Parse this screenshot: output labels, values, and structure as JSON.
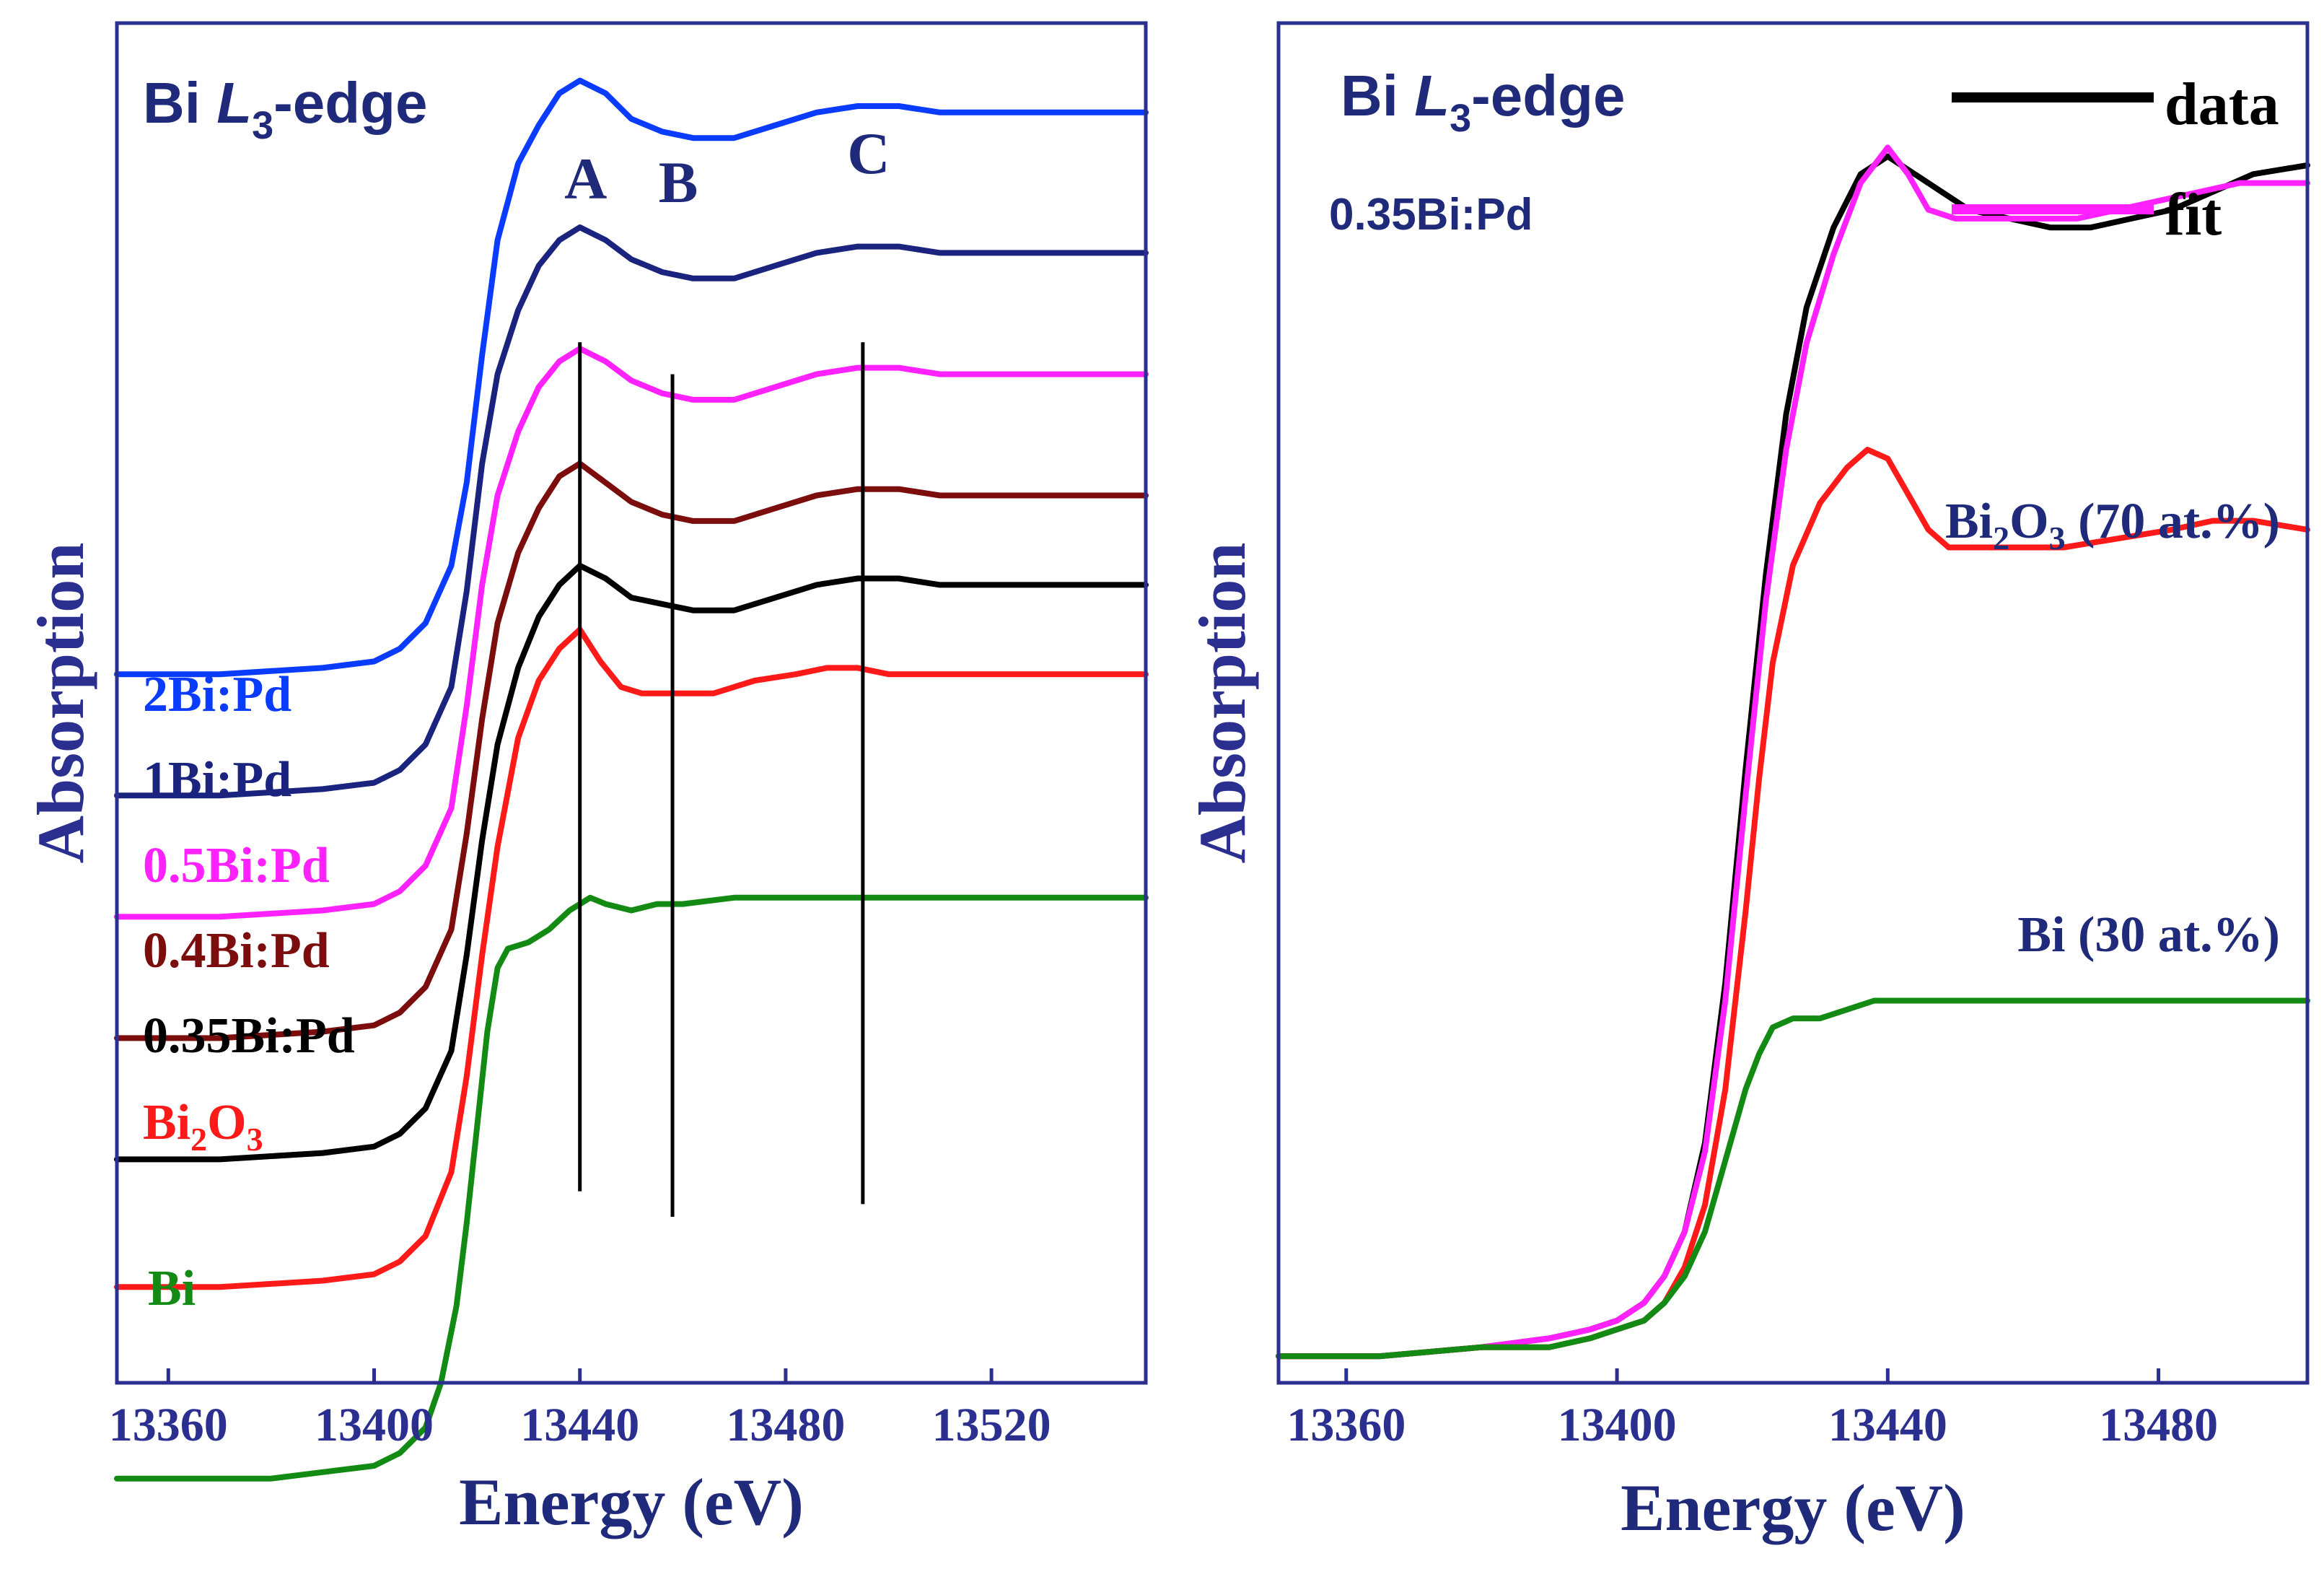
{
  "chart_data": [
    {
      "type": "line",
      "title_parts": {
        "pre": "Bi ",
        "italic": "L",
        "sub": "3",
        "post": "-edge"
      },
      "xlabel": "Energy (eV)",
      "ylabel": "Absorption",
      "xlim": [
        13350,
        13550
      ],
      "ylim": [
        -0.15,
        1.98
      ],
      "xticks": [
        "13360",
        "13400",
        "13440",
        "13480",
        "13520"
      ],
      "xtick_values": [
        13360,
        13400,
        13440,
        13480,
        13520
      ],
      "colors": {
        "axis": "#2b2f8f",
        "title": "#1f2a7a",
        "marker": "#000000"
      },
      "markers": [
        {
          "label": "A",
          "x": 13440,
          "y_top": 1.48,
          "y_bottom": 0.15
        },
        {
          "label": "B",
          "x": 13458,
          "y_top": 1.43,
          "y_bottom": 0.11
        },
        {
          "label": "C",
          "x": 13495,
          "y_top": 1.48,
          "y_bottom": 0.13
        }
      ],
      "series": [
        {
          "name": "2Bi:Pd",
          "color": "#0a3cff",
          "offset": 0.96,
          "x": [
            13350,
            13370,
            13390,
            13400,
            13405,
            13410,
            13415,
            13418,
            13421,
            13424,
            13428,
            13432,
            13436,
            13440,
            13445,
            13450,
            13456,
            13462,
            13470,
            13478,
            13486,
            13494,
            13502,
            13510,
            13520,
            13535,
            13550
          ],
          "values": [
            0.0,
            0.0,
            0.01,
            0.02,
            0.04,
            0.08,
            0.17,
            0.3,
            0.5,
            0.68,
            0.8,
            0.86,
            0.91,
            0.93,
            0.91,
            0.87,
            0.85,
            0.84,
            0.84,
            0.86,
            0.88,
            0.89,
            0.89,
            0.88,
            0.88,
            0.88,
            0.88
          ]
        },
        {
          "name": "1Bi:Pd",
          "color": "#1a237e",
          "offset": 0.77,
          "x": [
            13350,
            13370,
            13390,
            13400,
            13405,
            13410,
            13415,
            13418,
            13421,
            13424,
            13428,
            13432,
            13436,
            13440,
            13445,
            13450,
            13456,
            13462,
            13470,
            13478,
            13486,
            13494,
            13502,
            13510,
            13520,
            13535,
            13550
          ],
          "values": [
            0.0,
            0.0,
            0.01,
            0.02,
            0.04,
            0.08,
            0.17,
            0.32,
            0.52,
            0.66,
            0.76,
            0.83,
            0.87,
            0.89,
            0.87,
            0.84,
            0.82,
            0.81,
            0.81,
            0.83,
            0.85,
            0.86,
            0.86,
            0.85,
            0.85,
            0.85,
            0.85
          ]
        },
        {
          "name": "0.5Bi:Pd",
          "color": "#ff22ff",
          "offset": 0.58,
          "x": [
            13350,
            13370,
            13390,
            13400,
            13405,
            13410,
            13415,
            13418,
            13421,
            13424,
            13428,
            13432,
            13436,
            13440,
            13445,
            13450,
            13456,
            13462,
            13470,
            13478,
            13486,
            13494,
            13502,
            13510,
            13520,
            13535,
            13550
          ],
          "values": [
            0.0,
            0.0,
            0.01,
            0.02,
            0.04,
            0.08,
            0.17,
            0.33,
            0.52,
            0.66,
            0.76,
            0.83,
            0.87,
            0.89,
            0.87,
            0.84,
            0.82,
            0.81,
            0.81,
            0.83,
            0.85,
            0.86,
            0.86,
            0.85,
            0.85,
            0.85,
            0.85
          ]
        },
        {
          "name": "0.4Bi:Pd",
          "color": "#7b0d0d",
          "offset": 0.39,
          "x": [
            13350,
            13370,
            13390,
            13400,
            13405,
            13410,
            13415,
            13418,
            13421,
            13424,
            13428,
            13432,
            13436,
            13440,
            13445,
            13450,
            13456,
            13462,
            13470,
            13478,
            13486,
            13494,
            13502,
            13510,
            13520,
            13535,
            13550
          ],
          "values": [
            0.0,
            0.0,
            0.01,
            0.02,
            0.04,
            0.08,
            0.17,
            0.32,
            0.5,
            0.65,
            0.76,
            0.83,
            0.88,
            0.9,
            0.87,
            0.84,
            0.82,
            0.81,
            0.81,
            0.83,
            0.85,
            0.86,
            0.86,
            0.85,
            0.85,
            0.85,
            0.85
          ]
        },
        {
          "name": "0.35Bi:Pd",
          "color": "#000000",
          "offset": 0.2,
          "x": [
            13350,
            13370,
            13390,
            13400,
            13405,
            13410,
            13415,
            13418,
            13421,
            13424,
            13428,
            13432,
            13436,
            13440,
            13445,
            13450,
            13456,
            13462,
            13470,
            13478,
            13486,
            13494,
            13502,
            13510,
            13520,
            13535,
            13550
          ],
          "values": [
            0.0,
            0.0,
            0.01,
            0.02,
            0.04,
            0.08,
            0.17,
            0.32,
            0.5,
            0.65,
            0.77,
            0.85,
            0.9,
            0.93,
            0.91,
            0.88,
            0.87,
            0.86,
            0.86,
            0.88,
            0.9,
            0.91,
            0.91,
            0.9,
            0.9,
            0.9,
            0.9
          ]
        },
        {
          "name": "Bi2O3",
          "name_parts": [
            "Bi",
            "2",
            "O",
            "3"
          ],
          "color": "#ff1a1a",
          "offset": 0.0,
          "x": [
            13350,
            13370,
            13390,
            13400,
            13405,
            13410,
            13415,
            13418,
            13421,
            13424,
            13428,
            13432,
            13436,
            13440,
            13444,
            13448,
            13452,
            13458,
            13466,
            13474,
            13482,
            13488,
            13494,
            13500,
            13510,
            13530,
            13550
          ],
          "values": [
            0.0,
            0.0,
            0.01,
            0.02,
            0.04,
            0.08,
            0.18,
            0.33,
            0.52,
            0.69,
            0.86,
            0.95,
            1.0,
            1.03,
            0.98,
            0.94,
            0.93,
            0.93,
            0.93,
            0.95,
            0.96,
            0.97,
            0.97,
            0.96,
            0.96,
            0.96,
            0.96
          ]
        },
        {
          "name": "Bi",
          "color": "#138a13",
          "offset": -0.3,
          "x": [
            13350,
            13370,
            13380,
            13390,
            13400,
            13405,
            13410,
            13413,
            13416,
            13418,
            13420,
            13422,
            13424,
            13426,
            13430,
            13434,
            13438,
            13442,
            13445,
            13450,
            13455,
            13460,
            13470,
            13480,
            13490,
            13500,
            13520,
            13550
          ],
          "values": [
            0.0,
            0.0,
            0.0,
            0.01,
            0.02,
            0.04,
            0.08,
            0.15,
            0.27,
            0.4,
            0.55,
            0.7,
            0.8,
            0.83,
            0.84,
            0.86,
            0.89,
            0.91,
            0.9,
            0.89,
            0.9,
            0.9,
            0.91,
            0.91,
            0.91,
            0.91,
            0.91,
            0.91
          ]
        }
      ]
    },
    {
      "type": "line",
      "title_parts": {
        "pre": "Bi ",
        "italic": "L",
        "sub": "3",
        "post": "-edge"
      },
      "subtitle": "0.35Bi:Pd",
      "xlabel": "Energy (eV)",
      "ylabel": "Absorption",
      "xlim": [
        13350,
        13502
      ],
      "ylim": [
        -0.03,
        1.5
      ],
      "xticks": [
        "13360",
        "13400",
        "13440",
        "13480"
      ],
      "xtick_values": [
        13360,
        13400,
        13440,
        13480
      ],
      "colors": {
        "axis": "#2b2f8f",
        "title": "#1f2a7a",
        "annotation": "#1f2a7a"
      },
      "legend": {
        "position": "top-right",
        "entries": [
          {
            "label": "data",
            "color": "#000000"
          },
          {
            "label": "fit",
            "color": "#ff22ff"
          }
        ]
      },
      "annotations": [
        {
          "text_parts": [
            "Bi",
            "2",
            "O",
            "3",
            " (70 at.%)"
          ],
          "anchor_x": 13496,
          "anchor_y": 1.12
        },
        {
          "text": "Bi (30 at.%)",
          "anchor_x": 13496,
          "anchor_y": 0.48
        }
      ],
      "series": [
        {
          "name": "data",
          "color": "#000000",
          "x": [
            13350,
            13365,
            13380,
            13390,
            13396,
            13400,
            13404,
            13407,
            13410,
            13413,
            13416,
            13419,
            13422,
            13425,
            13428,
            13432,
            13436,
            13440,
            13444,
            13448,
            13452,
            13458,
            13464,
            13470,
            13476,
            13482,
            13488,
            13494,
            13502
          ],
          "values": [
            0.0,
            0.0,
            0.01,
            0.02,
            0.03,
            0.04,
            0.06,
            0.09,
            0.14,
            0.24,
            0.42,
            0.66,
            0.88,
            1.06,
            1.18,
            1.27,
            1.33,
            1.35,
            1.33,
            1.31,
            1.29,
            1.28,
            1.27,
            1.27,
            1.28,
            1.29,
            1.31,
            1.33,
            1.34
          ]
        },
        {
          "name": "fit",
          "color": "#ff22ff",
          "x": [
            13350,
            13365,
            13380,
            13390,
            13396,
            13400,
            13404,
            13407,
            13410,
            13413,
            13416,
            13419,
            13422,
            13425,
            13428,
            13432,
            13436,
            13440,
            13443,
            13446,
            13450,
            13456,
            13462,
            13468,
            13474,
            13480,
            13486,
            13492,
            13502
          ],
          "values": [
            0.0,
            0.0,
            0.01,
            0.02,
            0.03,
            0.04,
            0.06,
            0.09,
            0.14,
            0.23,
            0.4,
            0.63,
            0.85,
            1.02,
            1.14,
            1.24,
            1.32,
            1.36,
            1.33,
            1.29,
            1.28,
            1.28,
            1.28,
            1.28,
            1.29,
            1.3,
            1.31,
            1.32,
            1.32
          ]
        },
        {
          "name": "Bi2O3",
          "color": "#ff1a1a",
          "x": [
            13350,
            13365,
            13380,
            13390,
            13396,
            13400,
            13404,
            13407,
            13410,
            13413,
            13416,
            13419,
            13421,
            13423,
            13426,
            13430,
            13434,
            13437,
            13440,
            13443,
            13446,
            13449,
            13452,
            13458,
            13466,
            13474,
            13482,
            13488,
            13494,
            13502
          ],
          "values": [
            0.0,
            0.0,
            0.01,
            0.01,
            0.02,
            0.03,
            0.04,
            0.06,
            0.1,
            0.17,
            0.3,
            0.5,
            0.65,
            0.78,
            0.89,
            0.96,
            1.0,
            1.02,
            1.01,
            0.97,
            0.93,
            0.91,
            0.91,
            0.91,
            0.91,
            0.92,
            0.93,
            0.94,
            0.94,
            0.93
          ]
        },
        {
          "name": "Bi",
          "color": "#138a13",
          "x": [
            13350,
            13365,
            13380,
            13390,
            13396,
            13400,
            13404,
            13407,
            13410,
            13413,
            13416,
            13419,
            13421,
            13423,
            13426,
            13430,
            13434,
            13438,
            13442,
            13446,
            13450,
            13456,
            13462,
            13470,
            13480,
            13490,
            13502
          ],
          "values": [
            0.0,
            0.0,
            0.01,
            0.01,
            0.02,
            0.03,
            0.04,
            0.06,
            0.09,
            0.14,
            0.22,
            0.3,
            0.34,
            0.37,
            0.38,
            0.38,
            0.39,
            0.4,
            0.4,
            0.4,
            0.4,
            0.4,
            0.4,
            0.4,
            0.4,
            0.4,
            0.4
          ]
        }
      ]
    }
  ]
}
